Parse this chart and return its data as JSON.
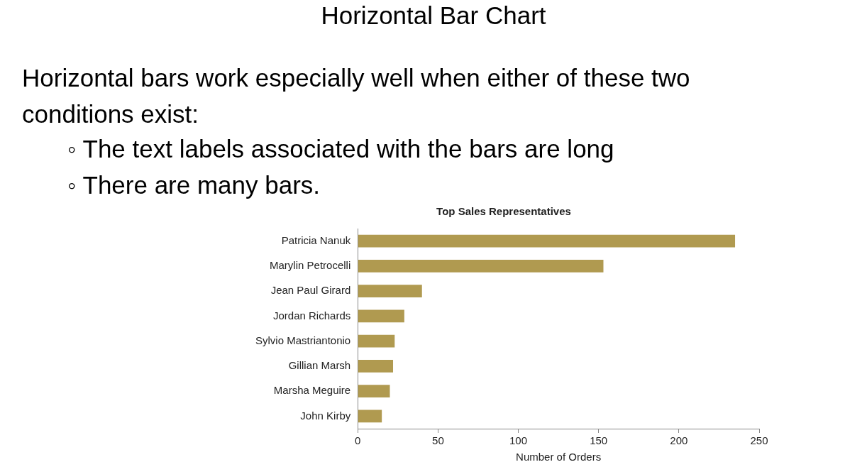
{
  "chart_data": {
    "type": "bar",
    "orientation": "horizontal",
    "title": "Top Sales Representatives",
    "xlabel": "Number of Orders",
    "annotations": [
      "Horizontal Bar Chart",
      "Horizontal bars work especially well when either of these two conditions exist:",
      "◦ The text labels associated with the bars are long",
      "◦ There are many bars."
    ],
    "categories": [
      "Patricia Nanuk",
      "Marylin Petrocelli",
      "Jean Paul Girard",
      "Jordan Richards",
      "Sylvio Mastriantonio",
      "Gillian Marsh",
      "Marsha Meguire",
      "John Kirby"
    ],
    "values": [
      235,
      153,
      40,
      29,
      23,
      22,
      20,
      15
    ],
    "color": "#b09a50",
    "xlim": [
      0,
      250
    ],
    "xticks": [
      0,
      50,
      100,
      150,
      200,
      250
    ],
    "grid": false,
    "legend": false
  }
}
